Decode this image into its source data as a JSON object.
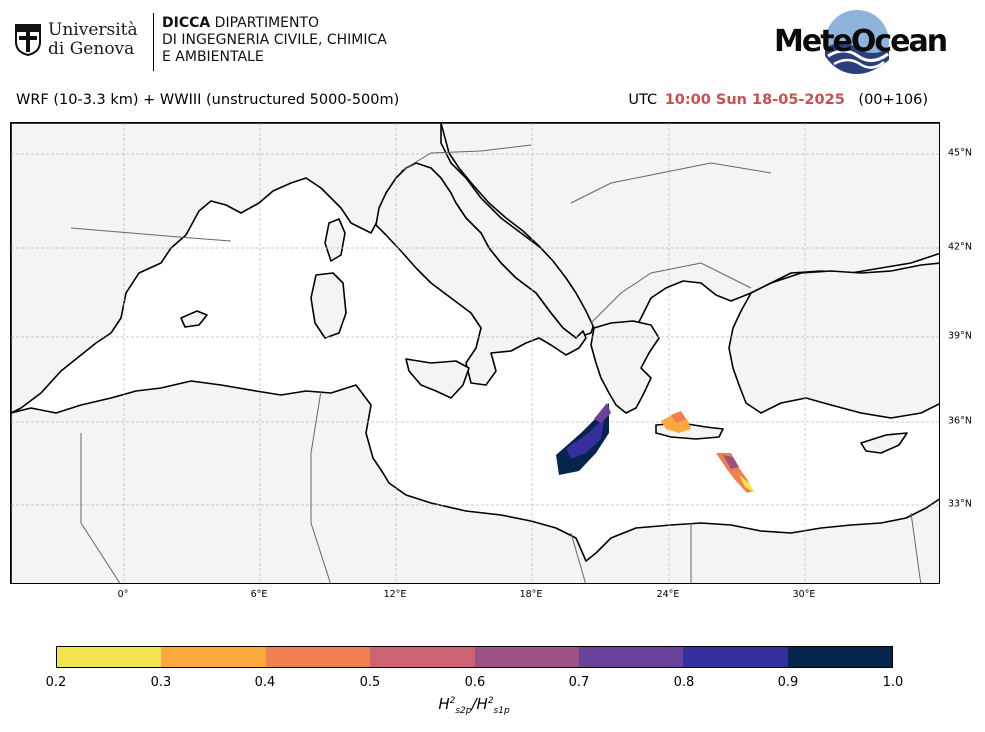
{
  "header": {
    "university_name_line1": "Università",
    "university_name_line2": "di Genova",
    "dept_line1_bold": "DICCA",
    "dept_line1_rest": " DIPARTIMENTO",
    "dept_line2": "DI INGEGNERIA CIVILE, CHIMICA",
    "dept_line3": "E AMBIENTALE",
    "brand": "MeteOcean"
  },
  "title": {
    "model": "WRF (10-3.3 km) + WWIII (unstructured 5000-500m)",
    "utc_prefix": "UTC",
    "valid_time": "10:00 Sun 18-05-2025",
    "lead": "(00+106)"
  },
  "map": {
    "lon_ticks": [
      "0°",
      "6°E",
      "12°E",
      "18°E",
      "24°E",
      "30°E"
    ],
    "lat_ticks": [
      "45°N",
      "42°N",
      "39°N",
      "36°N",
      "33°N"
    ],
    "colors": {
      "land": "#f4f4f4",
      "sea": "#ffffff",
      "coast": "#000000",
      "border": "#666666",
      "grid": "#bbbbbb"
    }
  },
  "colorbar": {
    "levels": [
      "0.2",
      "0.3",
      "0.4",
      "0.5",
      "0.6",
      "0.7",
      "0.8",
      "0.9",
      "1.0"
    ],
    "colors": [
      "#f3e34e",
      "#fba83c",
      "#f07f50",
      "#cb6373",
      "#9c5184",
      "#6a4299",
      "#352f9d",
      "#06254d"
    ],
    "label_num": "H",
    "label_num_sup": "2",
    "label_num_sub": "s2p",
    "label_den": "H",
    "label_den_sup": "2",
    "label_den_sub": "s1p"
  }
}
